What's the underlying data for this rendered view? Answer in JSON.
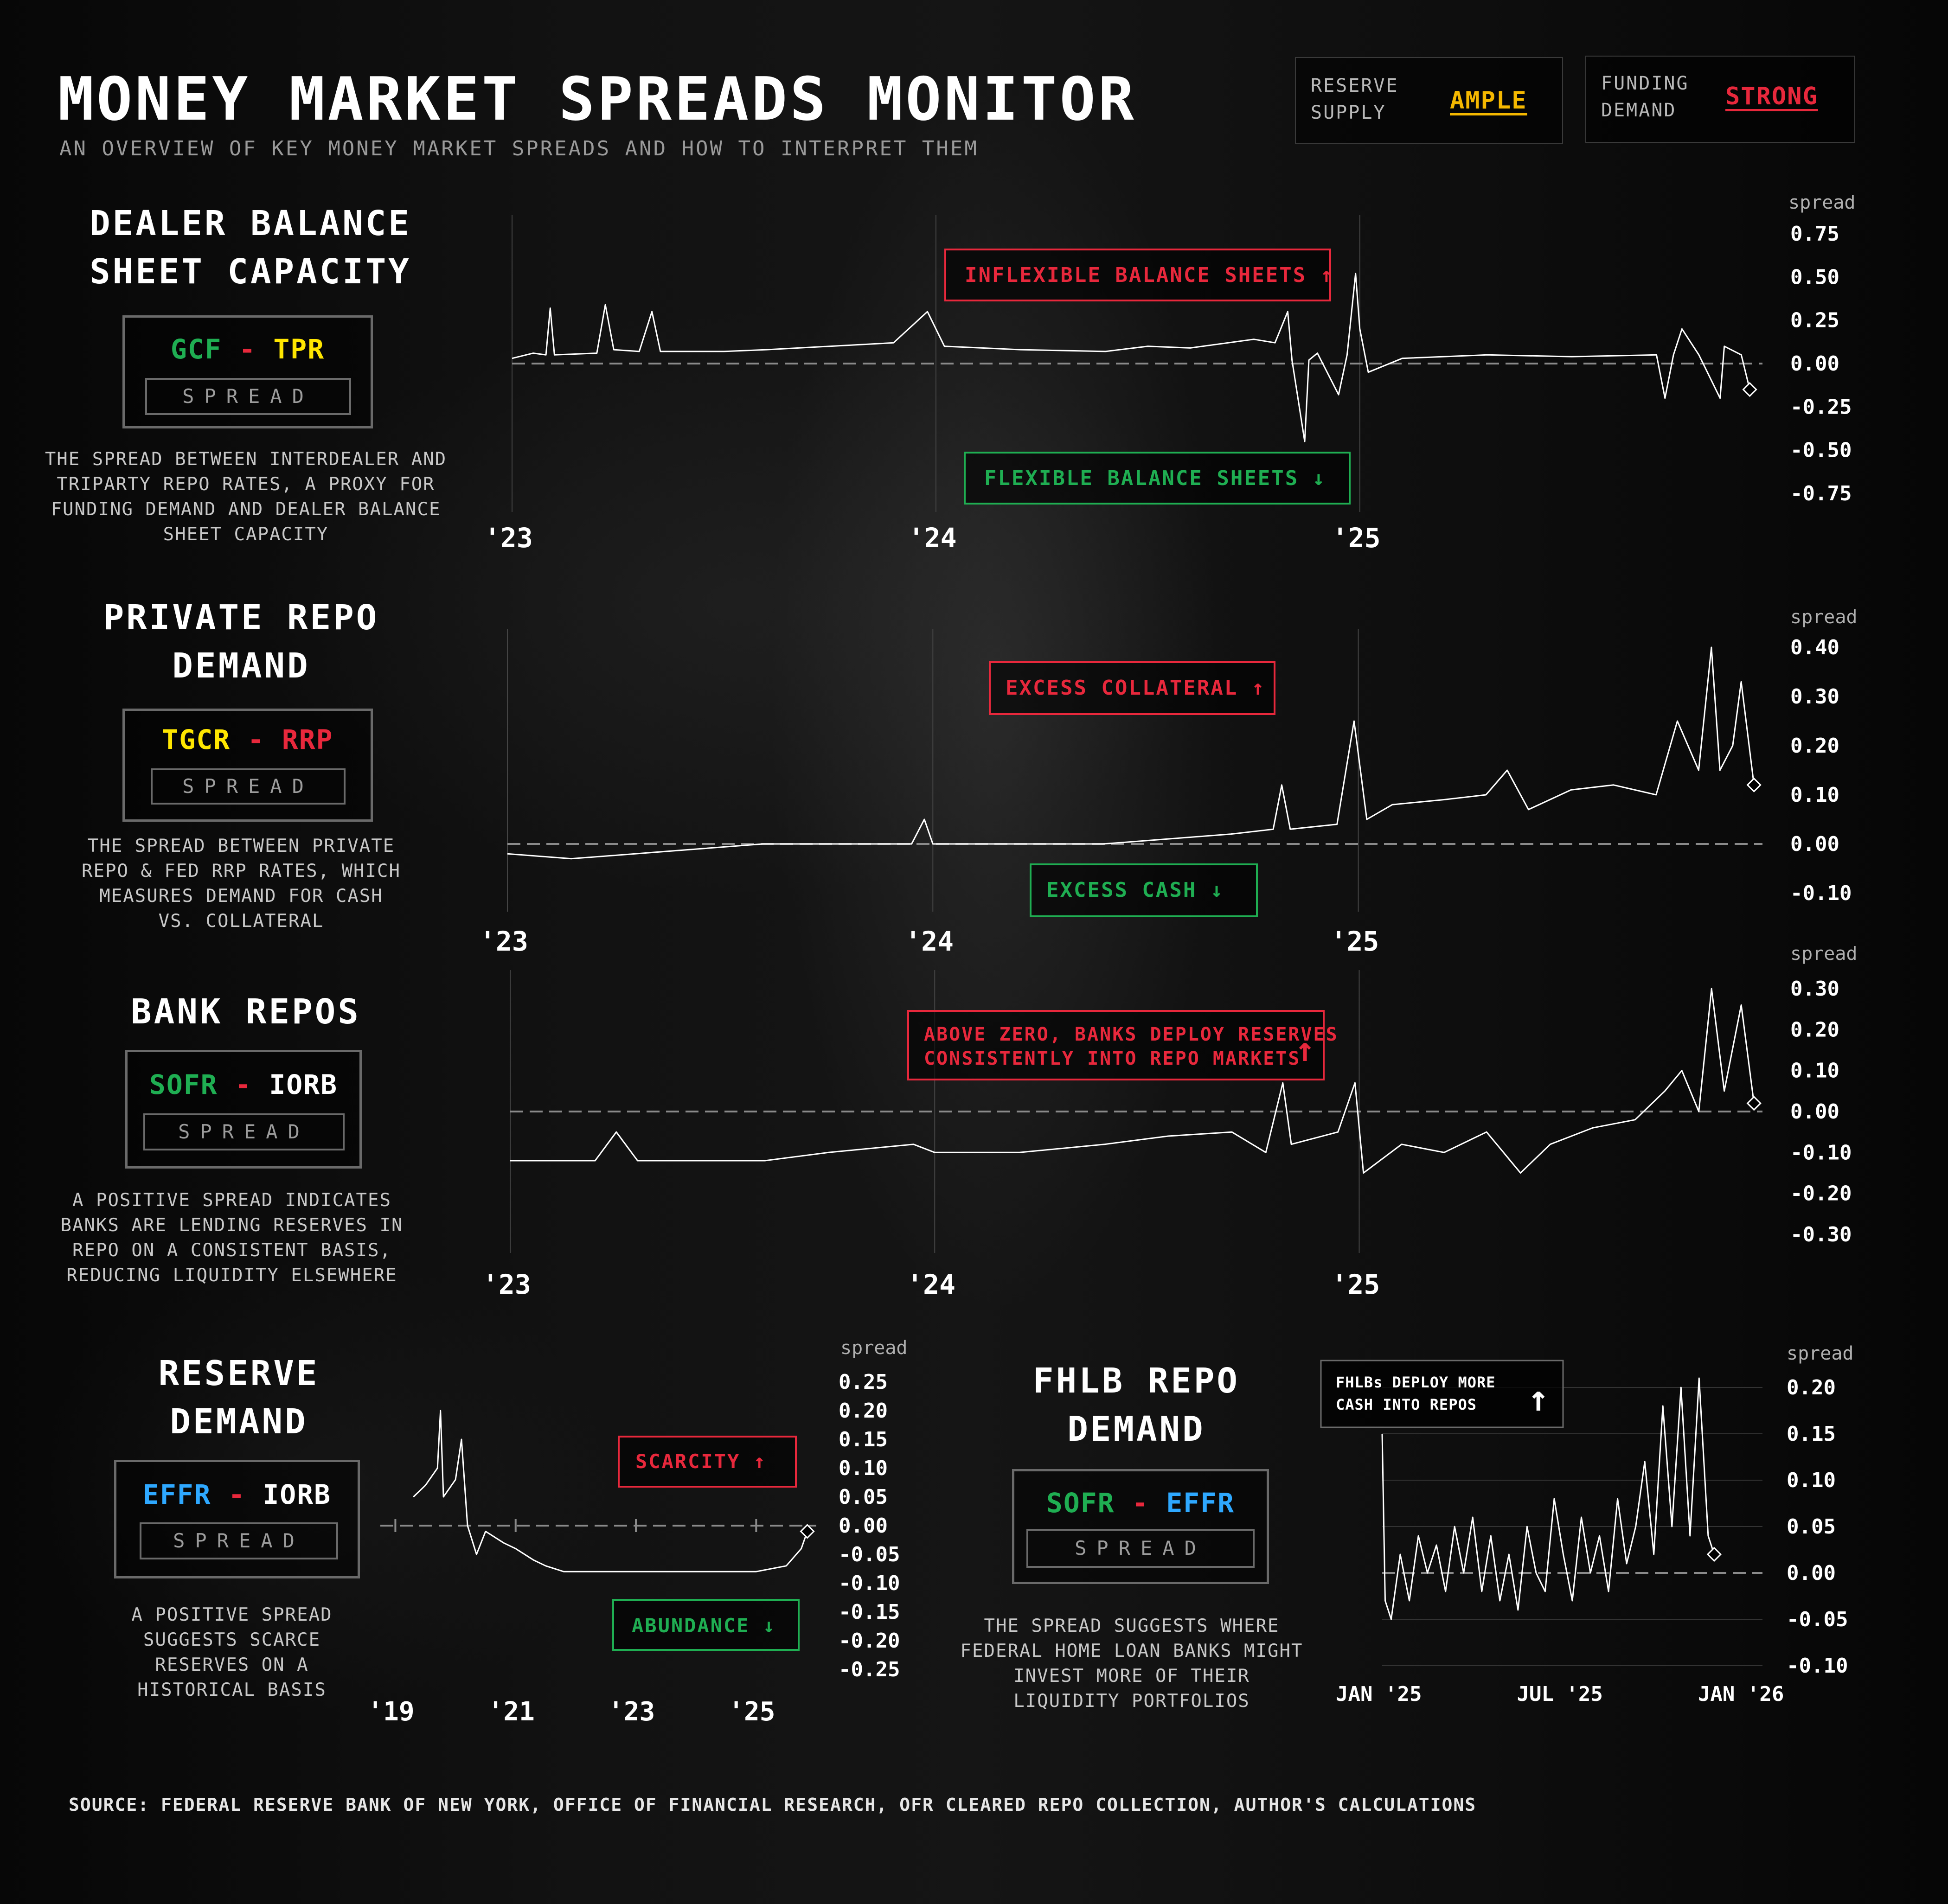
{
  "header": {
    "title": "MONEY MARKET SPREADS MONITOR",
    "subtitle": "AN OVERVIEW OF KEY MONEY MARKET SPREADS AND HOW TO INTERPRET THEM"
  },
  "status": {
    "reserve_label_1": "RESERVE",
    "reserve_label_2": "SUPPLY",
    "reserve_value": "AMPLE",
    "funding_label_1": "FUNDING",
    "funding_label_2": "DEMAND",
    "funding_value": "STRONG"
  },
  "colors": {
    "accent_red": "#e8283c",
    "accent_green": "#1fae52",
    "accent_yellow": "#ffe600",
    "accent_blue": "#2ea8ff",
    "amber": "#f5b800"
  },
  "panels": {
    "dealer": {
      "title_1": "DEALER BALANCE",
      "title_2": "SHEET CAPACITY",
      "a": "GCF",
      "minus": "-",
      "b": "TPR",
      "spread_label": "SPREAD",
      "desc_1": "THE SPREAD BETWEEN INTERDEALER AND",
      "desc_2": "TRIPARTY REPO RATES, A PROXY FOR",
      "desc_3": "FUNDING DEMAND AND DEALER BALANCE",
      "desc_4": "SHEET CAPACITY"
    },
    "private": {
      "title_1": "PRIVATE REPO",
      "title_2": "DEMAND",
      "a": "TGCR",
      "minus": "-",
      "b": "RRP",
      "spread_label": "SPREAD",
      "desc_1": "THE SPREAD BETWEEN PRIVATE",
      "desc_2": "REPO & FED RRP RATES, WHICH",
      "desc_3": "MEASURES DEMAND FOR CASH",
      "desc_4": "VS. COLLATERAL"
    },
    "bank": {
      "title_1": "BANK REPOS",
      "a": "SOFR",
      "minus": "-",
      "b": "IORB",
      "spread_label": "SPREAD",
      "desc_1": "A POSITIVE SPREAD INDICATES",
      "desc_2": "BANKS ARE LENDING RESERVES IN",
      "desc_3": "REPO ON A CONSISTENT BASIS,",
      "desc_4": "REDUCING LIQUIDITY ELSEWHERE"
    },
    "reserve": {
      "title_1": "RESERVE",
      "title_2": "DEMAND",
      "a": "EFFR",
      "minus": "-",
      "b": "IORB",
      "spread_label": "SPREAD",
      "desc_1": "A POSITIVE SPREAD",
      "desc_2": "SUGGESTS SCARCE",
      "desc_3": "RESERVES ON A",
      "desc_4": "HISTORICAL BASIS"
    },
    "fhlb": {
      "title_1": "FHLB REPO",
      "title_2": "DEMAND",
      "a": "SOFR",
      "minus": "-",
      "b": "EFFR",
      "spread_label": "SPREAD",
      "desc_1": "THE SPREAD SUGGESTS WHERE",
      "desc_2": "FEDERAL HOME LOAN BANKS MIGHT",
      "desc_3": "INVEST MORE OF THEIR",
      "desc_4": "LIQUIDITY PORTFOLIOS"
    }
  },
  "chart_data": [
    {
      "id": "c1",
      "type": "line",
      "title": "",
      "ylabel": "spread",
      "ylim": [
        -0.75,
        0.75
      ],
      "yticks": [
        "0.75",
        "0.50",
        "0.25",
        "0.00",
        "-0.25",
        "-0.50",
        "-0.75"
      ],
      "yticks_v": [
        0.75,
        0.5,
        0.25,
        0,
        -0.25,
        -0.5,
        -0.75
      ],
      "xlim": [
        2023.0,
        2025.95
      ],
      "xticks": [
        "'23",
        "'24",
        "'25"
      ],
      "xticks_v": [
        2023.0,
        2024.0,
        2025.0
      ],
      "upper_label": "INFLEXIBLE BALANCE SHEETS ↑",
      "lower_label": "FLEXIBLE BALANCE SHEETS ↓",
      "series": [
        {
          "values": [
            [
              2023.0,
              0.03
            ],
            [
              2023.05,
              0.06
            ],
            [
              2023.08,
              0.05
            ],
            [
              2023.09,
              0.32
            ],
            [
              2023.1,
              0.05
            ],
            [
              2023.2,
              0.06
            ],
            [
              2023.22,
              0.34
            ],
            [
              2023.24,
              0.08
            ],
            [
              2023.3,
              0.07
            ],
            [
              2023.33,
              0.3
            ],
            [
              2023.35,
              0.07
            ],
            [
              2023.5,
              0.07
            ],
            [
              2023.6,
              0.08
            ],
            [
              2023.75,
              0.1
            ],
            [
              2023.9,
              0.12
            ],
            [
              2023.98,
              0.3
            ],
            [
              2024.02,
              0.1
            ],
            [
              2024.2,
              0.08
            ],
            [
              2024.4,
              0.07
            ],
            [
              2024.5,
              0.1
            ],
            [
              2024.6,
              0.09
            ],
            [
              2024.75,
              0.14
            ],
            [
              2024.8,
              0.12
            ],
            [
              2024.83,
              0.3
            ],
            [
              2024.84,
              0.02
            ],
            [
              2024.87,
              -0.45
            ],
            [
              2024.88,
              0.02
            ],
            [
              2024.9,
              0.06
            ],
            [
              2024.95,
              -0.18
            ],
            [
              2024.97,
              0.05
            ],
            [
              2024.99,
              0.52
            ],
            [
              2025.0,
              0.2
            ],
            [
              2025.02,
              -0.05
            ],
            [
              2025.1,
              0.03
            ],
            [
              2025.3,
              0.05
            ],
            [
              2025.5,
              0.04
            ],
            [
              2025.7,
              0.05
            ],
            [
              2025.72,
              -0.2
            ],
            [
              2025.74,
              0.05
            ],
            [
              2025.76,
              0.2
            ],
            [
              2025.8,
              0.05
            ],
            [
              2025.85,
              -0.2
            ],
            [
              2025.86,
              0.1
            ],
            [
              2025.9,
              0.05
            ],
            [
              2025.92,
              -0.15
            ]
          ]
        }
      ]
    },
    {
      "id": "c2",
      "type": "line",
      "title": "",
      "ylabel": "spread",
      "ylim": [
        -0.1,
        0.4
      ],
      "yticks": [
        "0.40",
        "0.30",
        "0.20",
        "0.10",
        "0.00",
        "-0.10"
      ],
      "yticks_v": [
        0.4,
        0.3,
        0.2,
        0.1,
        0,
        -0.1
      ],
      "xlim": [
        2023.0,
        2025.95
      ],
      "xticks": [
        "'23",
        "'24",
        "'25"
      ],
      "xticks_v": [
        2023.0,
        2024.0,
        2025.0
      ],
      "upper_label": "EXCESS COLLATERAL ↑",
      "lower_label": "EXCESS CASH ↓",
      "series": [
        {
          "values": [
            [
              2023.0,
              -0.02
            ],
            [
              2023.15,
              -0.03
            ],
            [
              2023.3,
              -0.02
            ],
            [
              2023.45,
              -0.01
            ],
            [
              2023.6,
              0.0
            ],
            [
              2023.8,
              0.0
            ],
            [
              2023.95,
              0.0
            ],
            [
              2023.98,
              0.05
            ],
            [
              2024.0,
              0.0
            ],
            [
              2024.2,
              0.0
            ],
            [
              2024.4,
              0.0
            ],
            [
              2024.55,
              0.01
            ],
            [
              2024.7,
              0.02
            ],
            [
              2024.8,
              0.03
            ],
            [
              2024.82,
              0.12
            ],
            [
              2024.84,
              0.03
            ],
            [
              2024.95,
              0.04
            ],
            [
              2024.99,
              0.25
            ],
            [
              2025.02,
              0.05
            ],
            [
              2025.08,
              0.08
            ],
            [
              2025.2,
              0.09
            ],
            [
              2025.3,
              0.1
            ],
            [
              2025.35,
              0.15
            ],
            [
              2025.4,
              0.07
            ],
            [
              2025.5,
              0.11
            ],
            [
              2025.6,
              0.12
            ],
            [
              2025.7,
              0.1
            ],
            [
              2025.75,
              0.25
            ],
            [
              2025.8,
              0.15
            ],
            [
              2025.83,
              0.4
            ],
            [
              2025.85,
              0.15
            ],
            [
              2025.88,
              0.2
            ],
            [
              2025.9,
              0.33
            ],
            [
              2025.93,
              0.12
            ]
          ]
        }
      ]
    },
    {
      "id": "c3",
      "type": "line",
      "title": "",
      "ylabel": "spread",
      "ylim": [
        -0.3,
        0.3
      ],
      "yticks": [
        "0.30",
        "0.20",
        "0.10",
        "0.00",
        "-0.10",
        "-0.20",
        "-0.30"
      ],
      "yticks_v": [
        0.3,
        0.2,
        0.1,
        0,
        -0.1,
        -0.2,
        -0.3
      ],
      "xlim": [
        2023.0,
        2025.95
      ],
      "xticks": [
        "'23",
        "'24",
        "'25"
      ],
      "xticks_v": [
        2023.0,
        2024.0,
        2025.0
      ],
      "upper_label_1": "ABOVE ZERO, BANKS DEPLOY RESERVES",
      "upper_label_2": "CONSISTENTLY INTO REPO MARKETS",
      "series": [
        {
          "values": [
            [
              2023.0,
              -0.12
            ],
            [
              2023.2,
              -0.12
            ],
            [
              2023.25,
              -0.05
            ],
            [
              2023.3,
              -0.12
            ],
            [
              2023.6,
              -0.12
            ],
            [
              2023.75,
              -0.1
            ],
            [
              2023.95,
              -0.08
            ],
            [
              2024.0,
              -0.1
            ],
            [
              2024.2,
              -0.1
            ],
            [
              2024.4,
              -0.08
            ],
            [
              2024.55,
              -0.06
            ],
            [
              2024.7,
              -0.05
            ],
            [
              2024.78,
              -0.1
            ],
            [
              2024.82,
              0.07
            ],
            [
              2024.84,
              -0.08
            ],
            [
              2024.95,
              -0.05
            ],
            [
              2024.99,
              0.07
            ],
            [
              2025.01,
              -0.15
            ],
            [
              2025.1,
              -0.08
            ],
            [
              2025.2,
              -0.1
            ],
            [
              2025.3,
              -0.05
            ],
            [
              2025.38,
              -0.15
            ],
            [
              2025.45,
              -0.08
            ],
            [
              2025.55,
              -0.04
            ],
            [
              2025.65,
              -0.02
            ],
            [
              2025.72,
              0.05
            ],
            [
              2025.76,
              0.1
            ],
            [
              2025.8,
              0.0
            ],
            [
              2025.83,
              0.3
            ],
            [
              2025.86,
              0.05
            ],
            [
              2025.9,
              0.26
            ],
            [
              2025.93,
              0.02
            ]
          ]
        }
      ]
    },
    {
      "id": "c4",
      "type": "line",
      "title": "",
      "ylabel": "spread",
      "ylim": [
        -0.25,
        0.25
      ],
      "yticks": [
        "0.25",
        "0.20",
        "0.15",
        "0.10",
        "0.05",
        "0.00",
        "-0.05",
        "-0.10",
        "-0.15",
        "-0.20",
        "-0.25"
      ],
      "yticks_v": [
        0.25,
        0.2,
        0.15,
        0.1,
        0.05,
        0,
        -0.05,
        -0.1,
        -0.15,
        -0.2,
        -0.25
      ],
      "xlim": [
        2018.75,
        2026.0
      ],
      "xticks": [
        "'19",
        "'21",
        "'23",
        "'25"
      ],
      "xticks_v": [
        2019.0,
        2021.0,
        2023.0,
        2025.0
      ],
      "upper_label": "SCARCITY ↑",
      "lower_label": "ABUNDANCE ↓",
      "series": [
        {
          "values": [
            [
              2019.3,
              0.05
            ],
            [
              2019.5,
              0.07
            ],
            [
              2019.7,
              0.1
            ],
            [
              2019.75,
              0.2
            ],
            [
              2019.8,
              0.05
            ],
            [
              2020.0,
              0.08
            ],
            [
              2020.1,
              0.15
            ],
            [
              2020.2,
              0.0
            ],
            [
              2020.35,
              -0.05
            ],
            [
              2020.5,
              -0.01
            ],
            [
              2020.8,
              -0.03
            ],
            [
              2021.0,
              -0.04
            ],
            [
              2021.3,
              -0.06
            ],
            [
              2021.5,
              -0.07
            ],
            [
              2021.8,
              -0.08
            ],
            [
              2022.5,
              -0.08
            ],
            [
              2023.0,
              -0.08
            ],
            [
              2024.0,
              -0.08
            ],
            [
              2025.0,
              -0.08
            ],
            [
              2025.5,
              -0.07
            ],
            [
              2025.75,
              -0.04
            ],
            [
              2025.85,
              -0.01
            ]
          ]
        }
      ]
    },
    {
      "id": "c5",
      "type": "line",
      "title": "",
      "ylabel": "spread",
      "ylim": [
        -0.1,
        0.2
      ],
      "yticks": [
        "0.20",
        "0.15",
        "0.10",
        "0.05",
        "0.00",
        "-0.05",
        "-0.10"
      ],
      "yticks_v": [
        0.2,
        0.15,
        0.1,
        0.05,
        0,
        -0.05,
        -0.1
      ],
      "xlim": [
        0.0,
        12.6
      ],
      "xticks": [
        "JAN '25",
        "JUL '25",
        "JAN '26"
      ],
      "xticks_v": [
        0.0,
        6.0,
        12.0
      ],
      "upper_label_1": "FHLBs DEPLOY MORE",
      "upper_label_2": "CASH INTO REPOS",
      "series": [
        {
          "values": [
            [
              0.0,
              0.15
            ],
            [
              0.1,
              -0.03
            ],
            [
              0.3,
              -0.05
            ],
            [
              0.6,
              0.02
            ],
            [
              0.9,
              -0.03
            ],
            [
              1.2,
              0.04
            ],
            [
              1.5,
              0.0
            ],
            [
              1.8,
              0.03
            ],
            [
              2.1,
              -0.02
            ],
            [
              2.4,
              0.05
            ],
            [
              2.7,
              0.0
            ],
            [
              3.0,
              0.06
            ],
            [
              3.3,
              -0.02
            ],
            [
              3.6,
              0.04
            ],
            [
              3.9,
              -0.03
            ],
            [
              4.2,
              0.02
            ],
            [
              4.5,
              -0.04
            ],
            [
              4.8,
              0.05
            ],
            [
              5.1,
              0.0
            ],
            [
              5.4,
              -0.02
            ],
            [
              5.7,
              0.08
            ],
            [
              6.0,
              0.02
            ],
            [
              6.3,
              -0.03
            ],
            [
              6.6,
              0.06
            ],
            [
              6.9,
              0.0
            ],
            [
              7.2,
              0.04
            ],
            [
              7.5,
              -0.02
            ],
            [
              7.8,
              0.08
            ],
            [
              8.1,
              0.01
            ],
            [
              8.4,
              0.05
            ],
            [
              8.7,
              0.12
            ],
            [
              9.0,
              0.02
            ],
            [
              9.3,
              0.18
            ],
            [
              9.6,
              0.05
            ],
            [
              9.9,
              0.2
            ],
            [
              10.2,
              0.04
            ],
            [
              10.5,
              0.21
            ],
            [
              10.8,
              0.04
            ],
            [
              11.0,
              0.02
            ]
          ]
        }
      ]
    }
  ],
  "source": "SOURCE: FEDERAL RESERVE BANK OF NEW YORK, OFFICE OF FINANCIAL RESEARCH, OFR CLEARED REPO COLLECTION, AUTHOR'S CALCULATIONS"
}
